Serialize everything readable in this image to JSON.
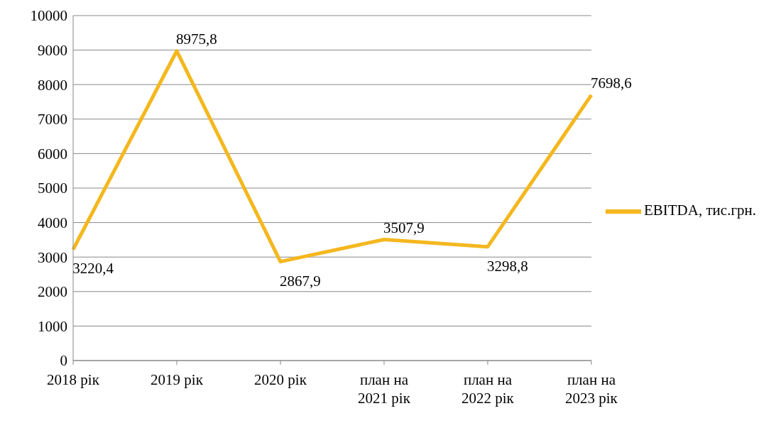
{
  "chart_data": {
    "type": "line",
    "categories": [
      "2018 рік",
      "2019 рік",
      "2020 рік",
      "план на 2021 рік",
      "план на 2022 рік",
      "план на 2023 рік"
    ],
    "series": [
      {
        "name": "EBITDA, тис.грн.",
        "color": "#f4b71e",
        "values": [
          3220.4,
          8975.8,
          2867.9,
          3507.9,
          3298.8,
          7698.6
        ],
        "value_labels": [
          "3220,4",
          "8975,8",
          "2867,9",
          "3507,9",
          "3298,8",
          "7698,6"
        ]
      }
    ],
    "ylim": [
      0,
      10000
    ],
    "yticks": [
      0,
      1000,
      2000,
      3000,
      4000,
      5000,
      6000,
      7000,
      8000,
      9000,
      10000
    ],
    "grid": "y",
    "legend": "right",
    "marker": "none",
    "line_style": "solid"
  }
}
